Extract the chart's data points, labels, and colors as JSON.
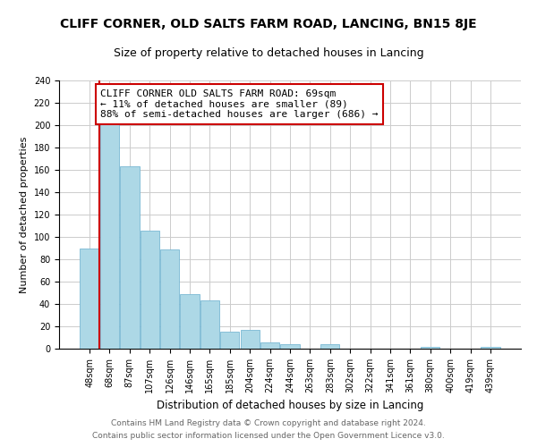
{
  "title": "CLIFF CORNER, OLD SALTS FARM ROAD, LANCING, BN15 8JE",
  "subtitle": "Size of property relative to detached houses in Lancing",
  "xlabel": "Distribution of detached houses by size in Lancing",
  "ylabel": "Number of detached properties",
  "bar_labels": [
    "48sqm",
    "68sqm",
    "87sqm",
    "107sqm",
    "126sqm",
    "146sqm",
    "165sqm",
    "185sqm",
    "204sqm",
    "224sqm",
    "244sqm",
    "263sqm",
    "283sqm",
    "302sqm",
    "322sqm",
    "341sqm",
    "361sqm",
    "380sqm",
    "400sqm",
    "419sqm",
    "439sqm"
  ],
  "bar_values": [
    90,
    201,
    163,
    106,
    89,
    49,
    43,
    15,
    17,
    6,
    4,
    0,
    4,
    0,
    0,
    0,
    0,
    2,
    0,
    0,
    2
  ],
  "bar_color": "#add8e6",
  "bar_edge_color": "#7ab8d4",
  "highlight_line_color": "#cc0000",
  "annotation_text": "CLIFF CORNER OLD SALTS FARM ROAD: 69sqm\n← 11% of detached houses are smaller (89)\n88% of semi-detached houses are larger (686) →",
  "annotation_box_color": "#ffffff",
  "annotation_box_edge": "#cc0000",
  "ylim": [
    0,
    240
  ],
  "yticks": [
    0,
    20,
    40,
    60,
    80,
    100,
    120,
    140,
    160,
    180,
    200,
    220,
    240
  ],
  "footer1": "Contains HM Land Registry data © Crown copyright and database right 2024.",
  "footer2": "Contains public sector information licensed under the Open Government Licence v3.0.",
  "title_fontsize": 10,
  "subtitle_fontsize": 9,
  "xlabel_fontsize": 8.5,
  "ylabel_fontsize": 8,
  "tick_fontsize": 7,
  "annotation_fontsize": 8,
  "footer_fontsize": 6.5
}
